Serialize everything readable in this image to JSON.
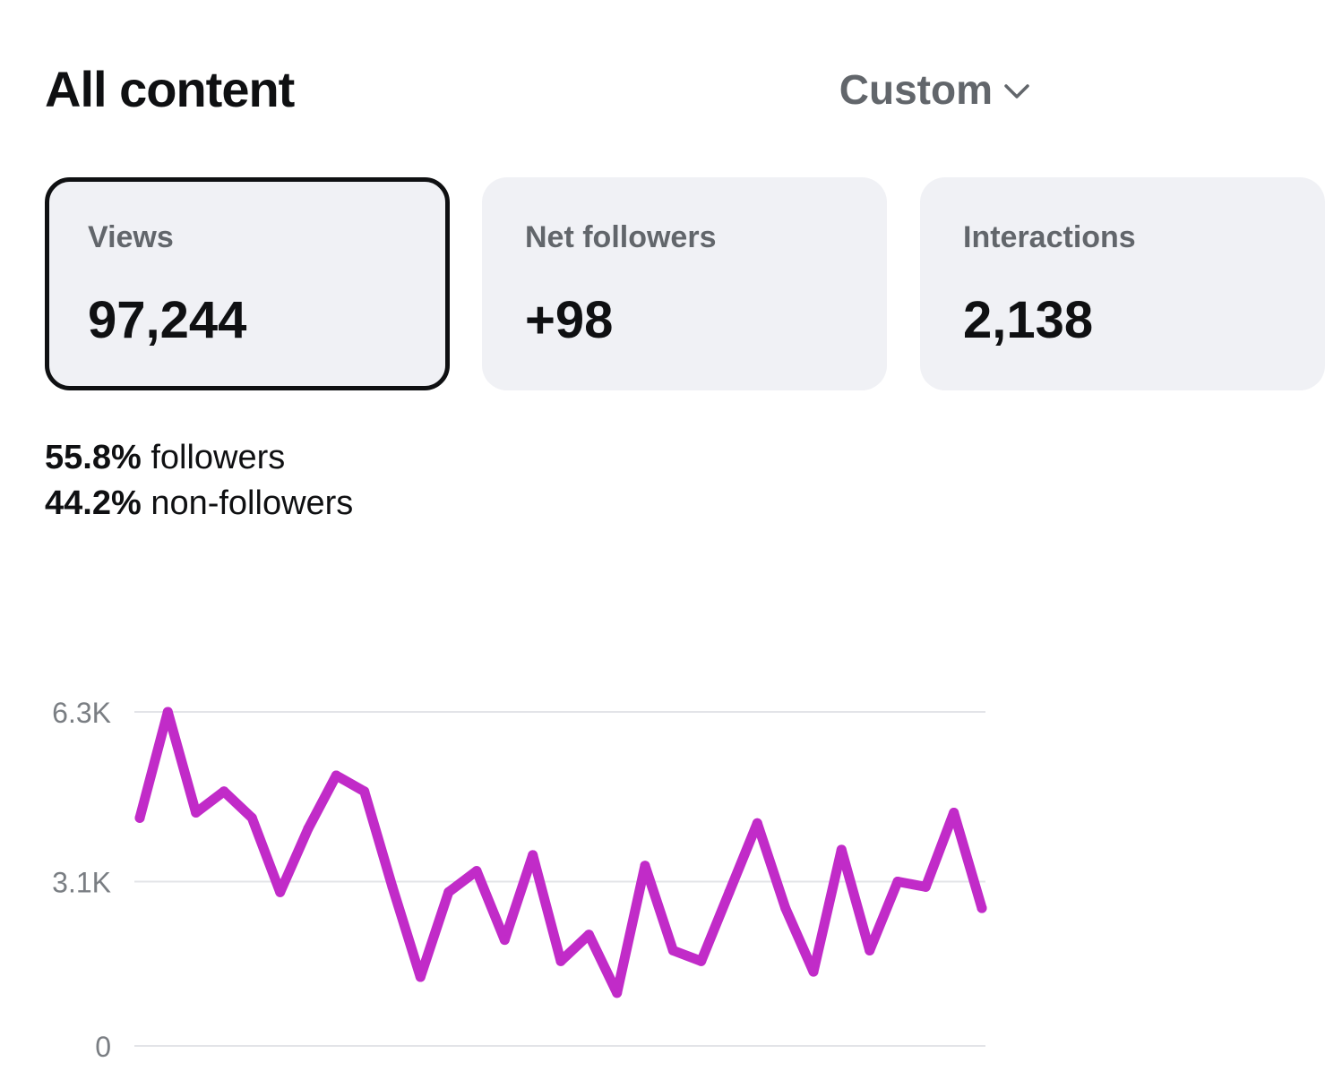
{
  "header": {
    "title": "All content",
    "range_label": "Custom"
  },
  "cards": [
    {
      "label": "Views",
      "value": "97,244",
      "selected": true
    },
    {
      "label": "Net followers",
      "value": "+98",
      "selected": false
    },
    {
      "label": "Interactions",
      "value": "2,138",
      "selected": false
    }
  ],
  "breakdown": {
    "followers_pct": "55.8%",
    "followers_label": "followers",
    "non_followers_pct": "44.2%",
    "non_followers_label": "non-followers"
  },
  "icons": {
    "range_chevron": "chevron-down-icon"
  },
  "colors": {
    "line": "#c12bc8",
    "grid": "#e3e4e8",
    "selected_border": "#0f1012",
    "card_bg": "#f0f1f5"
  },
  "chart_data": {
    "type": "line",
    "title": "",
    "xlabel": "",
    "ylabel": "",
    "ylim": [
      0,
      6300
    ],
    "y_ticks": [
      {
        "value": 0,
        "label": "0"
      },
      {
        "value": 3100,
        "label": "3.1K"
      },
      {
        "value": 6300,
        "label": "6.3K"
      }
    ],
    "grid": true,
    "legend": "none",
    "series": [
      {
        "color": "#c12bc8",
        "values": [
          4300,
          6300,
          4400,
          4800,
          4300,
          2900,
          4100,
          5100,
          4800,
          3000,
          1300,
          2900,
          3300,
          2000,
          3600,
          1600,
          2100,
          1000,
          3400,
          1800,
          1600,
          2900,
          4200,
          2600,
          1400,
          3700,
          1800,
          3100,
          3000,
          4400,
          2600
        ]
      }
    ]
  }
}
